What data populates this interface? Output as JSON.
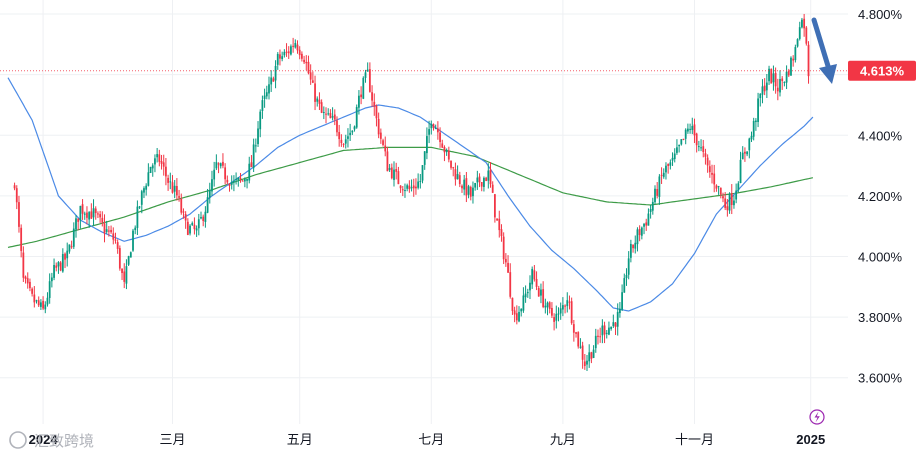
{
  "chart_data": {
    "type": "candlestick",
    "y_axis": {
      "min": 3.5,
      "max": 4.82,
      "ticks": [
        "4.800%",
        "4.600%",
        "4.400%",
        "4.200%",
        "4.000%",
        "3.800%",
        "3.600%"
      ],
      "tick_values": [
        4.8,
        4.6,
        4.4,
        4.2,
        4.0,
        3.8,
        3.6
      ],
      "position": "right"
    },
    "x_axis": {
      "labels": [
        "2024",
        "三月",
        "五月",
        "七月",
        "九月",
        "十一月",
        "2025"
      ],
      "label_day_index": [
        13,
        72,
        130,
        190,
        250,
        310,
        363
      ],
      "bold_labels": [
        "2024",
        "2025"
      ],
      "day_range": [
        -3,
        380
      ]
    },
    "grid": true,
    "current_price": {
      "value": 4.613,
      "label": "4.613%",
      "color": "#f23645"
    },
    "colors": {
      "up": "#089981",
      "down": "#f23645",
      "ma_short": "#4b8ae6",
      "ma_long": "#3d9b47",
      "arrow": "#3f6fb5"
    },
    "annotation": {
      "type": "arrow",
      "direction": "down",
      "color": "#3f6fb5"
    },
    "watermark": "汇致跨境",
    "close_anchors": [
      [
        0,
        4.25
      ],
      [
        4,
        3.92
      ],
      [
        8,
        3.86
      ],
      [
        13,
        3.82
      ],
      [
        18,
        3.95
      ],
      [
        24,
        4.0
      ],
      [
        30,
        4.16
      ],
      [
        36,
        4.14
      ],
      [
        40,
        4.1
      ],
      [
        46,
        4.05
      ],
      [
        50,
        3.9
      ],
      [
        54,
        4.08
      ],
      [
        58,
        4.2
      ],
      [
        62,
        4.3
      ],
      [
        66,
        4.32
      ],
      [
        70,
        4.25
      ],
      [
        74,
        4.2
      ],
      [
        78,
        4.1
      ],
      [
        83,
        4.08
      ],
      [
        88,
        4.18
      ],
      [
        92,
        4.3
      ],
      [
        96,
        4.27
      ],
      [
        100,
        4.24
      ],
      [
        104,
        4.25
      ],
      [
        108,
        4.3
      ],
      [
        112,
        4.48
      ],
      [
        116,
        4.55
      ],
      [
        120,
        4.65
      ],
      [
        124,
        4.67
      ],
      [
        128,
        4.71
      ],
      [
        132,
        4.66
      ],
      [
        136,
        4.55
      ],
      [
        140,
        4.47
      ],
      [
        146,
        4.44
      ],
      [
        150,
        4.38
      ],
      [
        154,
        4.42
      ],
      [
        158,
        4.55
      ],
      [
        161,
        4.6
      ],
      [
        165,
        4.45
      ],
      [
        170,
        4.3
      ],
      [
        175,
        4.25
      ],
      [
        180,
        4.22
      ],
      [
        185,
        4.25
      ],
      [
        190,
        4.46
      ],
      [
        194,
        4.4
      ],
      [
        198,
        4.31
      ],
      [
        204,
        4.24
      ],
      [
        208,
        4.2
      ],
      [
        212,
        4.25
      ],
      [
        216,
        4.27
      ],
      [
        220,
        4.11
      ],
      [
        224,
        3.98
      ],
      [
        228,
        3.8
      ],
      [
        232,
        3.85
      ],
      [
        236,
        3.94
      ],
      [
        240,
        3.87
      ],
      [
        244,
        3.81
      ],
      [
        248,
        3.8
      ],
      [
        252,
        3.87
      ],
      [
        256,
        3.74
      ],
      [
        260,
        3.65
      ],
      [
        264,
        3.7
      ],
      [
        268,
        3.76
      ],
      [
        272,
        3.77
      ],
      [
        276,
        3.81
      ],
      [
        280,
        4.0
      ],
      [
        284,
        4.07
      ],
      [
        288,
        4.12
      ],
      [
        292,
        4.2
      ],
      [
        296,
        4.28
      ],
      [
        300,
        4.31
      ],
      [
        304,
        4.37
      ],
      [
        308,
        4.43
      ],
      [
        312,
        4.37
      ],
      [
        316,
        4.29
      ],
      [
        320,
        4.24
      ],
      [
        324,
        4.17
      ],
      [
        328,
        4.2
      ],
      [
        332,
        4.33
      ],
      [
        336,
        4.4
      ],
      [
        340,
        4.53
      ],
      [
        344,
        4.6
      ],
      [
        348,
        4.56
      ],
      [
        352,
        4.6
      ],
      [
        356,
        4.68
      ],
      [
        358,
        4.78
      ],
      [
        360,
        4.77
      ],
      [
        362,
        4.61
      ]
    ],
    "ma_short": [
      [
        -3,
        4.59
      ],
      [
        8,
        4.45
      ],
      [
        20,
        4.2
      ],
      [
        30,
        4.12
      ],
      [
        40,
        4.08
      ],
      [
        50,
        4.05
      ],
      [
        60,
        4.07
      ],
      [
        70,
        4.1
      ],
      [
        80,
        4.14
      ],
      [
        90,
        4.2
      ],
      [
        100,
        4.25
      ],
      [
        110,
        4.3
      ],
      [
        120,
        4.36
      ],
      [
        130,
        4.4
      ],
      [
        140,
        4.43
      ],
      [
        150,
        4.46
      ],
      [
        160,
        4.49
      ],
      [
        166,
        4.5
      ],
      [
        175,
        4.49
      ],
      [
        185,
        4.46
      ],
      [
        195,
        4.41
      ],
      [
        205,
        4.36
      ],
      [
        215,
        4.31
      ],
      [
        225,
        4.2
      ],
      [
        235,
        4.1
      ],
      [
        245,
        4.02
      ],
      [
        255,
        3.96
      ],
      [
        265,
        3.89
      ],
      [
        273,
        3.83
      ],
      [
        280,
        3.82
      ],
      [
        290,
        3.85
      ],
      [
        300,
        3.91
      ],
      [
        310,
        4.01
      ],
      [
        320,
        4.14
      ],
      [
        330,
        4.22
      ],
      [
        340,
        4.3
      ],
      [
        350,
        4.37
      ],
      [
        360,
        4.43
      ],
      [
        364,
        4.46
      ]
    ],
    "ma_long": [
      [
        -3,
        4.03
      ],
      [
        10,
        4.05
      ],
      [
        30,
        4.09
      ],
      [
        50,
        4.13
      ],
      [
        70,
        4.18
      ],
      [
        90,
        4.22
      ],
      [
        110,
        4.27
      ],
      [
        130,
        4.31
      ],
      [
        150,
        4.35
      ],
      [
        170,
        4.36
      ],
      [
        190,
        4.36
      ],
      [
        210,
        4.33
      ],
      [
        230,
        4.27
      ],
      [
        250,
        4.21
      ],
      [
        270,
        4.18
      ],
      [
        290,
        4.17
      ],
      [
        310,
        4.19
      ],
      [
        330,
        4.21
      ],
      [
        345,
        4.23
      ],
      [
        364,
        4.26
      ]
    ]
  }
}
